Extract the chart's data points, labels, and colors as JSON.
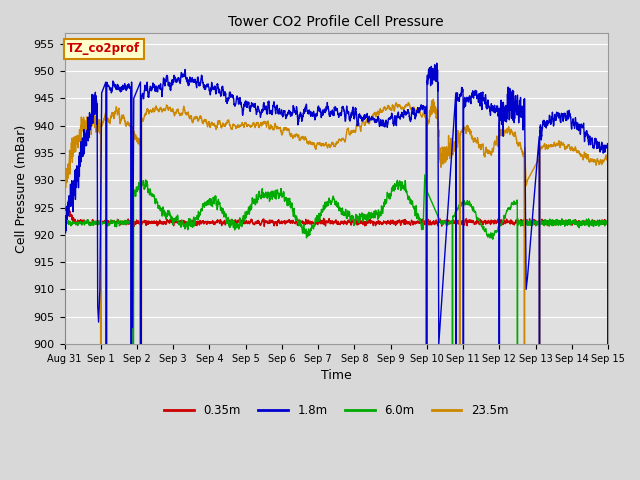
{
  "title": "Tower CO2 Profile Cell Pressure",
  "xlabel": "Time",
  "ylabel": "Cell Pressure (mBar)",
  "ylim": [
    900,
    957
  ],
  "yticks": [
    900,
    905,
    910,
    915,
    920,
    925,
    930,
    935,
    940,
    945,
    950,
    955
  ],
  "xtick_labels": [
    "Aug 31",
    "Sep 1",
    "Sep 2",
    "Sep 3",
    "Sep 4",
    "Sep 5",
    "Sep 6",
    "Sep 7",
    "Sep 8",
    "Sep 9",
    "Sep 10",
    "Sep 11",
    "Sep 12",
    "Sep 13",
    "Sep 14",
    "Sep 15"
  ],
  "legend_labels": [
    "0.35m",
    "1.8m",
    "6.0m",
    "23.5m"
  ],
  "legend_colors": [
    "#cc0000",
    "#0000cc",
    "#00aa00",
    "#cc8800"
  ],
  "annotation_text": "TZ_co2prof",
  "annotation_color": "#cc0000",
  "annotation_bg": "#ffffcc",
  "annotation_border": "#cc8800",
  "bg_color": "#e0e0e0",
  "grid_color": "#ffffff",
  "fig_bg": "#d8d8d8",
  "n_days": 15,
  "n_points": 3000
}
